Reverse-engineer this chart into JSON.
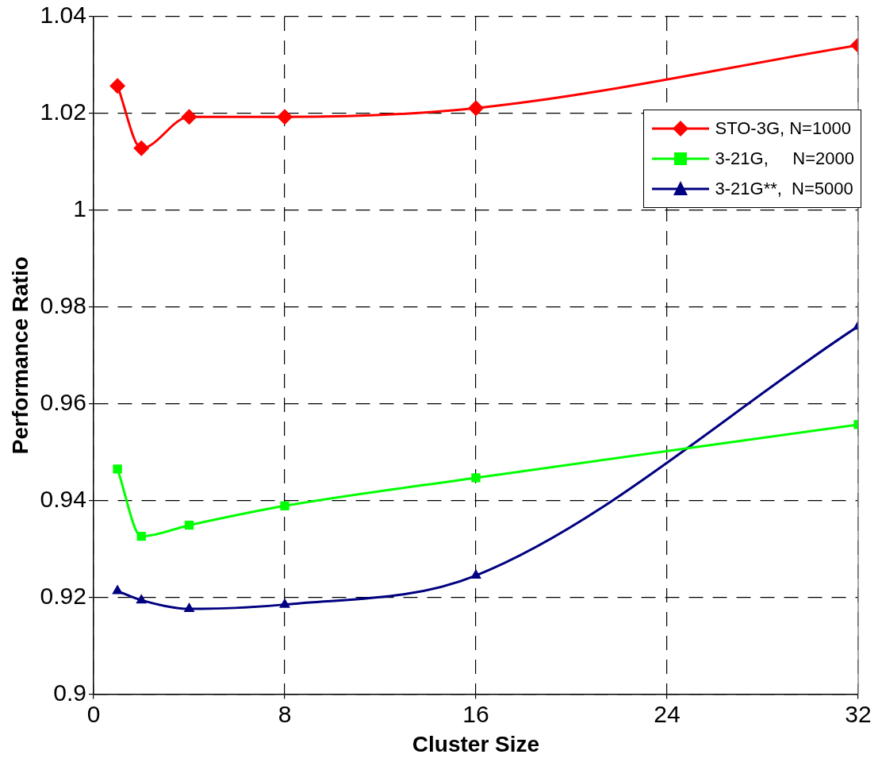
{
  "chart_data": {
    "type": "line",
    "xlabel": "Cluster Size",
    "ylabel": "Performance Ratio",
    "xlim": [
      0,
      32
    ],
    "xticks": [
      0,
      8,
      16,
      24,
      32
    ],
    "ylim": [
      0.9,
      1.04
    ],
    "yticks": [
      0.9,
      0.92,
      0.94,
      0.96,
      0.98,
      1,
      1.02,
      1.04
    ],
    "grid": true,
    "legend": "top right",
    "line_style": "solid",
    "series": [
      {
        "name": "STO-3G, N=1000",
        "color": "#ff0000",
        "marker": "diamond",
        "x": [
          1,
          2,
          4,
          8,
          16,
          32
        ],
        "values": [
          1.0257,
          1.0128,
          1.0193,
          1.0193,
          1.0211,
          1.0341
        ]
      },
      {
        "name": "3-21G,     N=2000",
        "color": "#00ff00",
        "marker": "square",
        "x": [
          1,
          2,
          4,
          8,
          16,
          32
        ],
        "values": [
          0.9465,
          0.9326,
          0.9349,
          0.9389,
          0.9447,
          0.9557
        ]
      },
      {
        "name": "3-21G**,  N=5000",
        "color": "#000080",
        "marker": "triangle",
        "x": [
          1,
          2,
          4,
          8,
          16,
          32
        ],
        "values": [
          0.9213,
          0.9194,
          0.9176,
          0.9185,
          0.9245,
          0.976
        ]
      }
    ]
  }
}
